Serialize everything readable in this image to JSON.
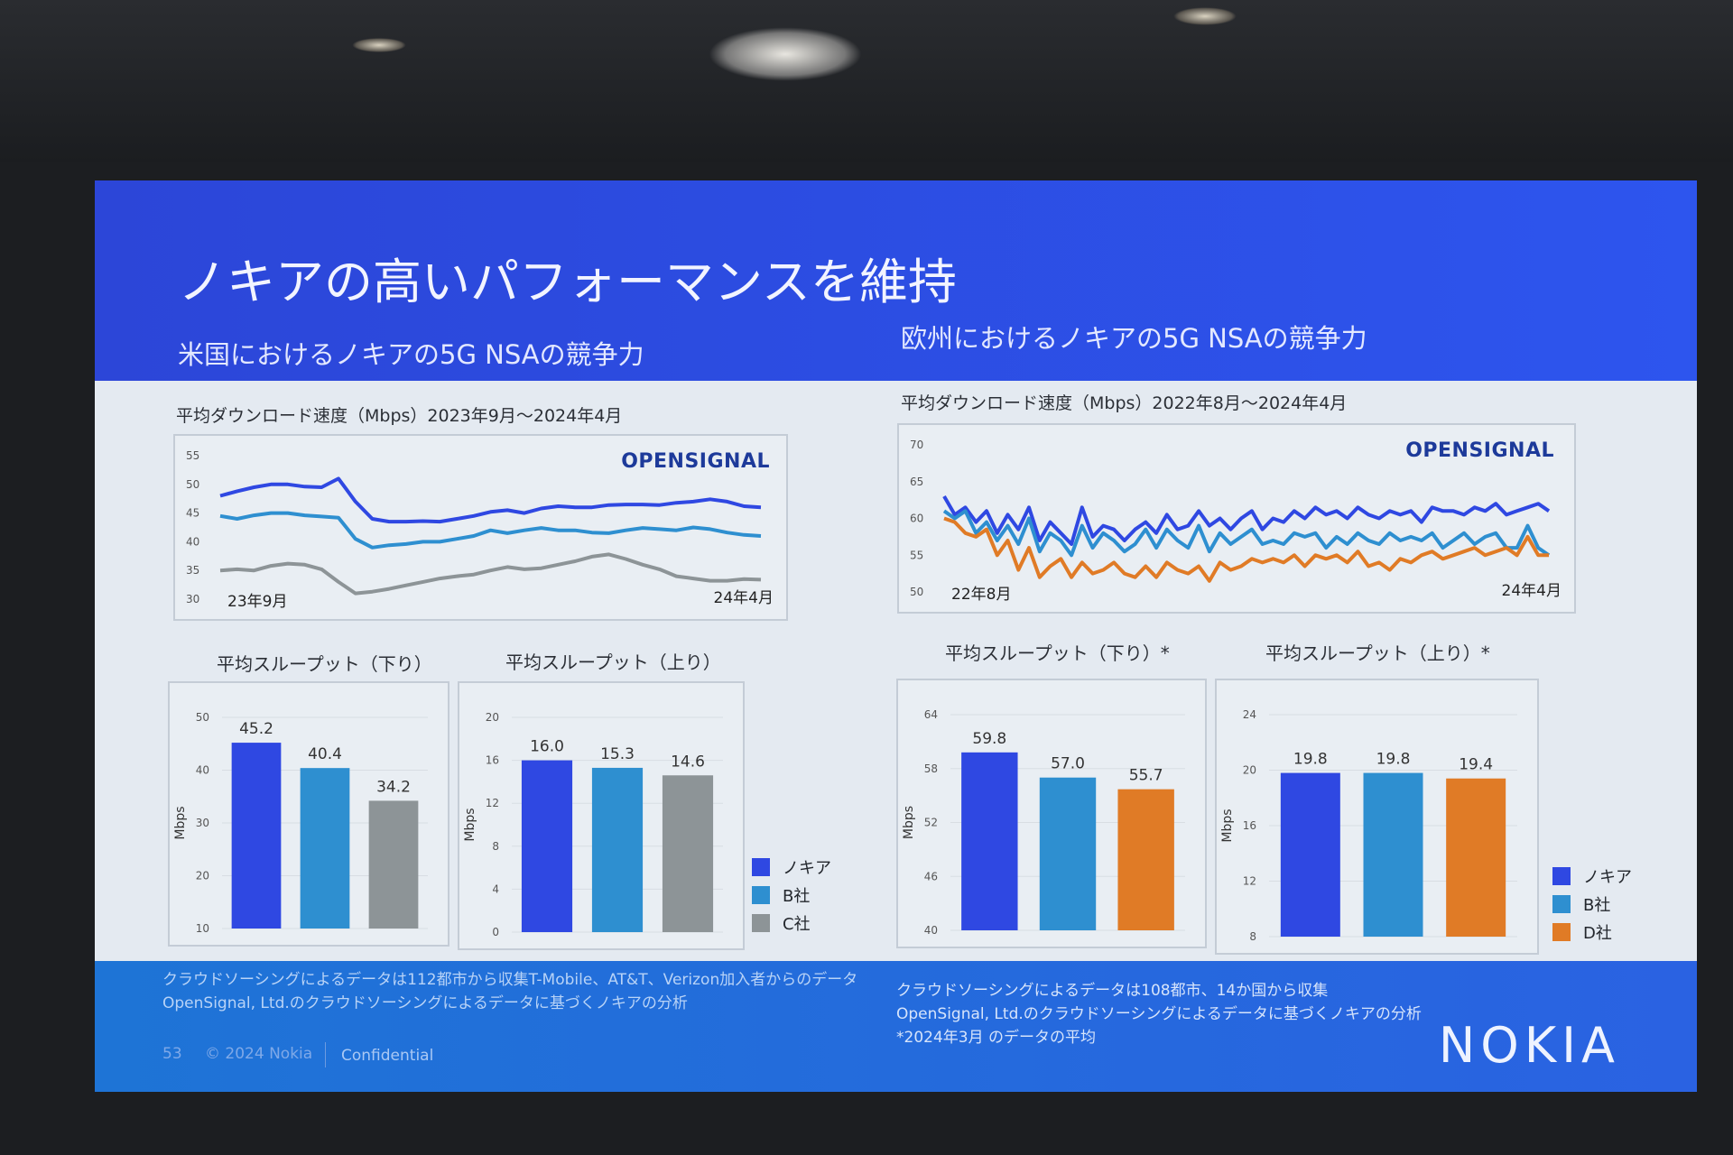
{
  "slide": {
    "title": "ノキアの高いパフォーマンスを維持",
    "us_subtitle": "米国におけるノキアの5G NSAの競争力",
    "eu_subtitle": "欧州におけるノキアの5G NSAの競争力",
    "us_footnotes": [
      "クラウドソーシングによるデータは112都市から収集T-Mobile、AT&T、Verizon加入者からのデータ",
      "OpenSignal, Ltd.のクラウドソーシングによるデータに基づくノキアの分析"
    ],
    "eu_footnotes": [
      "クラウドソーシングによるデータは108都市、14か国から収集",
      "OpenSignal, Ltd.のクラウドソーシングによるデータに基づくノキアの分析",
      "*2024年3月 のデータの平均"
    ],
    "page_number": "53",
    "copyright": "© 2024 Nokia",
    "confidential": "Confidential",
    "brand": "NOKIA",
    "source_logo": "OPENSIGNAL"
  },
  "colors": {
    "nokia": "#2f48e2",
    "b": "#2e8fd0",
    "c": "#8d9497",
    "d": "#e07b26"
  },
  "legend_us": [
    "ノキア",
    "B社",
    "C社"
  ],
  "legend_eu": [
    "ノキア",
    "B社",
    "D社"
  ],
  "chart_data": [
    {
      "id": "us_line",
      "type": "line",
      "title": "平均ダウンロード速度（Mbps）2023年9月～2024年4月",
      "ylim": [
        30,
        55
      ],
      "yticks": [
        55,
        50,
        45,
        40,
        35,
        30
      ],
      "start_label": "23年9月",
      "end_label": "24年4月",
      "series": [
        {
          "name": "ノキア",
          "color": "nokia",
          "values": [
            48,
            48.8,
            49.5,
            50,
            50,
            49.6,
            49.5,
            51,
            47,
            44,
            43.5,
            43.5,
            43.6,
            43.5,
            44,
            44.5,
            45.2,
            45.5,
            45,
            45.8,
            46.2,
            46,
            46,
            46.4,
            46.5,
            46.5,
            46.4,
            46.8,
            47,
            47.4,
            47,
            46.2,
            46
          ]
        },
        {
          "name": "B社",
          "color": "b",
          "values": [
            44.5,
            44,
            44.6,
            45,
            45,
            44.6,
            44.4,
            44.2,
            40.5,
            39,
            39.4,
            39.6,
            40,
            40,
            40.5,
            41,
            42,
            41.5,
            42,
            42.4,
            42,
            42,
            41.6,
            41.5,
            42,
            42.4,
            42.2,
            42,
            42.5,
            42.2,
            41.6,
            41.2,
            41
          ]
        },
        {
          "name": "C社",
          "color": "c",
          "values": [
            35,
            35.2,
            35,
            35.8,
            36.2,
            36,
            35.2,
            33,
            31,
            31.3,
            31.8,
            32.4,
            33,
            33.6,
            34,
            34.3,
            35,
            35.6,
            35.2,
            35.4,
            36,
            36.6,
            37.4,
            37.8,
            37,
            36,
            35.2,
            34,
            33.6,
            33.2,
            33.2,
            33.5,
            33.4
          ]
        }
      ]
    },
    {
      "id": "eu_line",
      "type": "line",
      "title": "平均ダウンロード速度（Mbps）2022年8月～2024年4月",
      "ylim": [
        50,
        70
      ],
      "yticks": [
        70,
        65,
        60,
        55,
        50
      ],
      "start_label": "22年8月",
      "end_label": "24年4月",
      "series": [
        {
          "name": "ノキア",
          "color": "nokia",
          "values": [
            63,
            60.5,
            61.5,
            59.5,
            61,
            58,
            60.5,
            58.5,
            61.5,
            57,
            59.5,
            58,
            56.5,
            61.5,
            57.5,
            59,
            58.5,
            57,
            58.5,
            59.5,
            58,
            60.5,
            58.5,
            59,
            61,
            59,
            60,
            58.5,
            60,
            61,
            58.5,
            60,
            59.5,
            61,
            60,
            61.5,
            60.5,
            61,
            60,
            61.5,
            60.5,
            60,
            61,
            60.5,
            61,
            59.5,
            61.5,
            61,
            61,
            60.5,
            61.5,
            61,
            62,
            60.5,
            61,
            61.5,
            62,
            61
          ]
        },
        {
          "name": "B社",
          "color": "b",
          "values": [
            61,
            60,
            61,
            58,
            59.5,
            57,
            59,
            56.5,
            60,
            55.5,
            58,
            57,
            55,
            59,
            56,
            58,
            57,
            55.5,
            56.5,
            58.5,
            56,
            58.5,
            57,
            56,
            59,
            55.5,
            58,
            56.5,
            57.5,
            58.5,
            56.5,
            57,
            56.5,
            58,
            57.5,
            58,
            56,
            57.5,
            56.5,
            58,
            57,
            56.5,
            58,
            57,
            57.5,
            57,
            58,
            56,
            57,
            58,
            56.5,
            57.5,
            58,
            56,
            56,
            59,
            56,
            55
          ]
        },
        {
          "name": "D社",
          "color": "d",
          "values": [
            60,
            59.5,
            58,
            57.5,
            58.5,
            55,
            57,
            53,
            56,
            52,
            53.5,
            54.5,
            52,
            54,
            52.5,
            53,
            54,
            52.5,
            52,
            53.5,
            52,
            54,
            53,
            52.5,
            53.5,
            51.5,
            54,
            53,
            53.5,
            54.5,
            54,
            54.5,
            54,
            55,
            53.5,
            55,
            54.5,
            55,
            54,
            55.5,
            53.5,
            54,
            53,
            54.5,
            54,
            55,
            55.5,
            54.5,
            55,
            55.5,
            56,
            55,
            55.5,
            56,
            55,
            57.5,
            55,
            55
          ]
        }
      ]
    },
    {
      "id": "us_down",
      "type": "bar",
      "title": "平均スループット（下り）",
      "ylabel": "Mbps",
      "ylim": [
        10,
        50
      ],
      "yticks": [
        50,
        40,
        30,
        20,
        10
      ],
      "categories": [
        "ノキア",
        "B社",
        "C社"
      ],
      "values": [
        45.2,
        40.4,
        34.2
      ],
      "labels": [
        "45.2",
        "40.4",
        "34.2"
      ],
      "colors": [
        "nokia",
        "b",
        "c"
      ]
    },
    {
      "id": "us_up",
      "type": "bar",
      "title": "平均スループット（上り）",
      "ylabel": "Mbps",
      "ylim": [
        0,
        20
      ],
      "yticks": [
        20,
        16,
        12,
        8,
        4,
        0
      ],
      "categories": [
        "ノキア",
        "B社",
        "C社"
      ],
      "values": [
        16.0,
        15.3,
        14.6
      ],
      "labels": [
        "16.0",
        "15.3",
        "14.6"
      ],
      "colors": [
        "nokia",
        "b",
        "c"
      ]
    },
    {
      "id": "eu_down",
      "type": "bar",
      "title": "平均スループット（下り）*",
      "ylabel": "Mbps",
      "ylim": [
        40,
        64
      ],
      "yticks": [
        64,
        58,
        52,
        46,
        40
      ],
      "categories": [
        "ノキア",
        "B社",
        "D社"
      ],
      "values": [
        59.8,
        57.0,
        55.7
      ],
      "labels": [
        "59.8",
        "57.0",
        "55.7"
      ],
      "colors": [
        "nokia",
        "b",
        "d"
      ]
    },
    {
      "id": "eu_up",
      "type": "bar",
      "title": "平均スループット（上り）*",
      "ylabel": "Mbps",
      "ylim": [
        8,
        24
      ],
      "yticks": [
        24,
        20,
        16,
        12,
        8
      ],
      "categories": [
        "ノキア",
        "B社",
        "D社"
      ],
      "values": [
        19.8,
        19.8,
        19.4
      ],
      "labels": [
        "19.8",
        "19.8",
        "19.4"
      ],
      "colors": [
        "nokia",
        "b",
        "d"
      ]
    }
  ]
}
